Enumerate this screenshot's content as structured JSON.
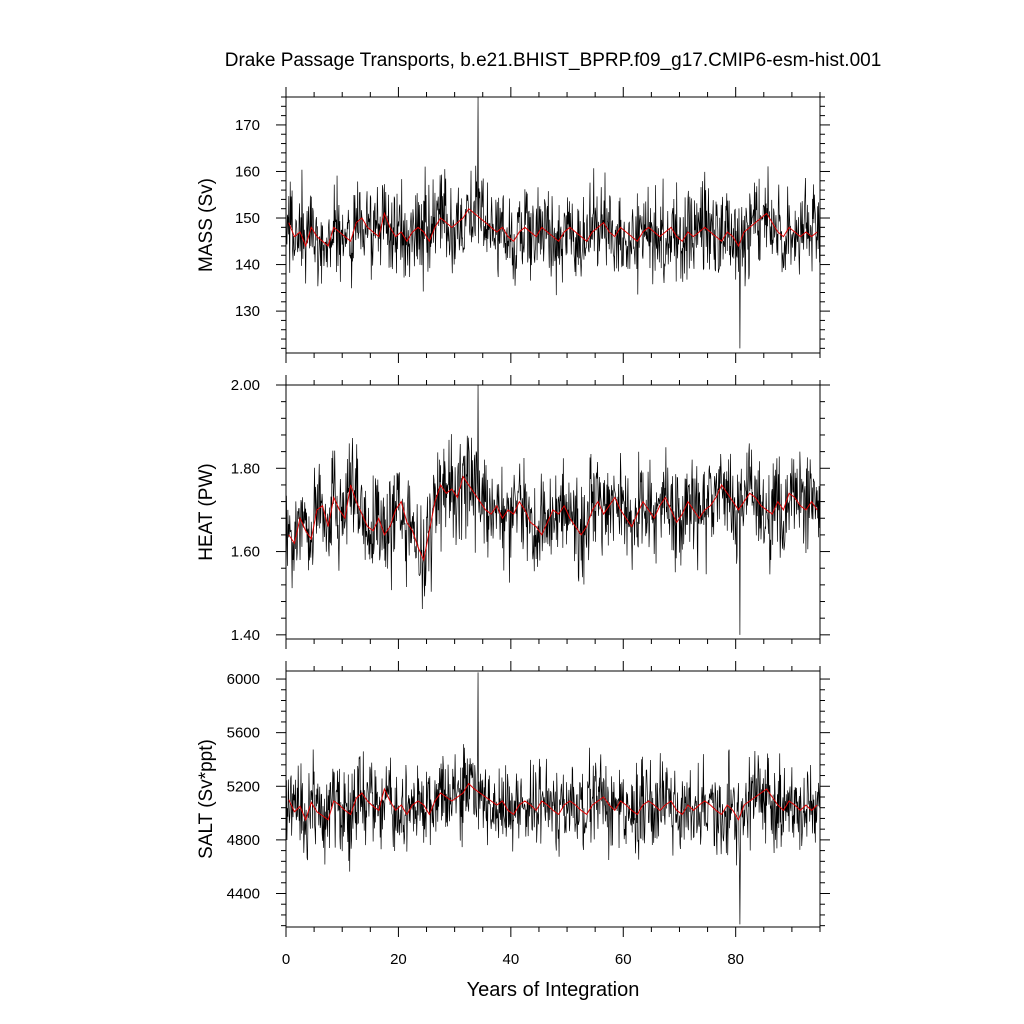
{
  "chart_data": {
    "type": "line",
    "title": "Drake Passage Transports, b.e21.BHIST_BPRP.f09_g17.CMIP6-esm-hist.001",
    "xlabel": "Years of Integration",
    "xlim": [
      0,
      95
    ],
    "xticks": [
      0,
      20,
      40,
      60,
      80
    ],
    "x_tick_labels": [
      "0",
      "20",
      "40",
      "60",
      "80"
    ],
    "colors": {
      "raw": "#000000",
      "annual_mean": "#e00000"
    },
    "panels": [
      {
        "ylabel": "MASS (Sv)",
        "ylim": [
          121,
          176
        ],
        "yticks": [
          130,
          140,
          150,
          160,
          170
        ],
        "y_tick_labels": [
          "130",
          "140",
          "150",
          "160",
          "170"
        ],
        "annual_mean": [
          149,
          146,
          147,
          144,
          148,
          146,
          145,
          144,
          148,
          147,
          146,
          145,
          149,
          150,
          148,
          147,
          146,
          151,
          148,
          146,
          147,
          145,
          147,
          148,
          147,
          145,
          148,
          150,
          149,
          148,
          149,
          150,
          152,
          151,
          150,
          149,
          148,
          147,
          148,
          146,
          145,
          147,
          148,
          147,
          146,
          148,
          147,
          146,
          145,
          147,
          148,
          147,
          146,
          145,
          147,
          148,
          149,
          147,
          146,
          148,
          147,
          146,
          145,
          147,
          148,
          147,
          146,
          147,
          148,
          146,
          145,
          147,
          146,
          147,
          148,
          147,
          146,
          145,
          147,
          146,
          144,
          147,
          148,
          149,
          150,
          151,
          149,
          147,
          146,
          148,
          147,
          146,
          147,
          146,
          147
        ],
        "monthly_base": 147.5,
        "monthly_amplitude": 9,
        "monthly_extremes": {
          "max": 176,
          "min": 122
        }
      },
      {
        "ylabel": "HEAT (PW)",
        "ylim": [
          1.39,
          2.0
        ],
        "yticks": [
          1.4,
          1.6,
          1.8,
          2.0
        ],
        "y_tick_labels": [
          "1.40",
          "1.60",
          "1.80",
          "2.00"
        ],
        "annual_mean": [
          1.64,
          1.62,
          1.68,
          1.65,
          1.63,
          1.7,
          1.71,
          1.66,
          1.73,
          1.7,
          1.68,
          1.76,
          1.72,
          1.69,
          1.66,
          1.65,
          1.68,
          1.64,
          1.66,
          1.7,
          1.72,
          1.67,
          1.65,
          1.61,
          1.58,
          1.65,
          1.72,
          1.76,
          1.74,
          1.75,
          1.73,
          1.78,
          1.76,
          1.74,
          1.72,
          1.7,
          1.69,
          1.71,
          1.68,
          1.7,
          1.69,
          1.72,
          1.7,
          1.67,
          1.66,
          1.64,
          1.67,
          1.7,
          1.69,
          1.71,
          1.68,
          1.66,
          1.64,
          1.66,
          1.7,
          1.72,
          1.69,
          1.71,
          1.73,
          1.7,
          1.68,
          1.66,
          1.69,
          1.72,
          1.7,
          1.68,
          1.71,
          1.73,
          1.7,
          1.67,
          1.69,
          1.72,
          1.7,
          1.68,
          1.7,
          1.71,
          1.73,
          1.76,
          1.74,
          1.72,
          1.7,
          1.72,
          1.74,
          1.73,
          1.71,
          1.7,
          1.69,
          1.72,
          1.7,
          1.74,
          1.73,
          1.71,
          1.7,
          1.72,
          1.7
        ],
        "monthly_base": 1.69,
        "monthly_amplitude": 0.11,
        "monthly_extremes": {
          "max": 2.0,
          "min": 1.4
        }
      },
      {
        "ylabel": "SALT (Sv*ppt)",
        "ylim": [
          4150,
          6060
        ],
        "yticks": [
          4400,
          4800,
          5200,
          5600,
          6000
        ],
        "y_tick_labels": [
          "4400",
          "4800",
          "5200",
          "5600",
          "6000"
        ],
        "annual_mean": [
          5100,
          5010,
          5050,
          4950,
          5080,
          5010,
          4980,
          4950,
          5090,
          5060,
          5020,
          4990,
          5110,
          5150,
          5090,
          5050,
          5020,
          5180,
          5090,
          5020,
          5060,
          4990,
          5060,
          5090,
          5060,
          4990,
          5090,
          5150,
          5120,
          5090,
          5120,
          5150,
          5220,
          5180,
          5150,
          5120,
          5090,
          5060,
          5090,
          5020,
          4990,
          5060,
          5090,
          5060,
          5020,
          5090,
          5060,
          5020,
          4990,
          5060,
          5090,
          5060,
          5020,
          4990,
          5060,
          5090,
          5120,
          5060,
          5020,
          5090,
          5060,
          5020,
          4990,
          5060,
          5090,
          5060,
          5020,
          5060,
          5090,
          5020,
          4990,
          5060,
          5020,
          5060,
          5090,
          5060,
          5020,
          4990,
          5060,
          5020,
          4950,
          5060,
          5090,
          5120,
          5150,
          5180,
          5120,
          5060,
          5020,
          5090,
          5060,
          5020,
          5060,
          5020,
          5060
        ],
        "monthly_base": 5050,
        "monthly_amplitude": 300,
        "monthly_extremes": {
          "max": 6050,
          "min": 4170
        }
      }
    ]
  }
}
